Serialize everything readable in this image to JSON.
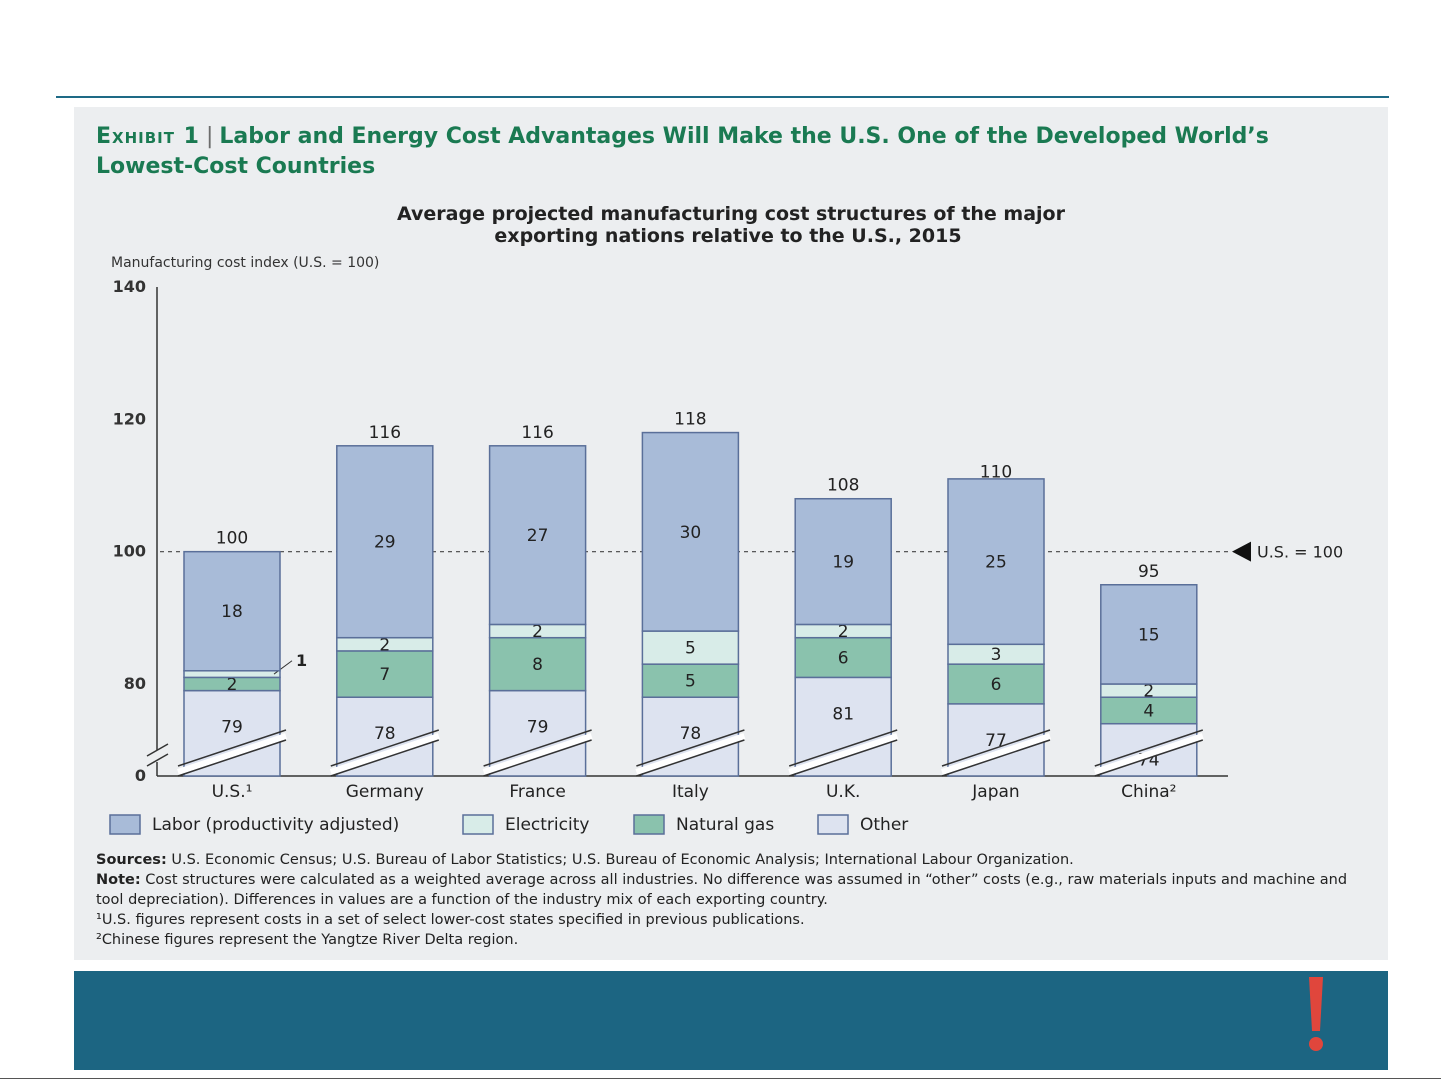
{
  "exhibit": {
    "label": "Exhibit 1",
    "separator": "|",
    "title": "Labor and Energy Cost Advantages Will Make the U.S. One of the Developed World’s Lowest-Cost Countries"
  },
  "chart_data": {
    "type": "bar",
    "stacked": true,
    "title": "Average projected manufacturing cost structures of the major exporting nations relative to the U.S., 2015",
    "title_lines": [
      "Average projected manufacturing cost structures of the major",
      "exporting nations relative to the U.S., 2015"
    ],
    "ylabel": "Manufacturing cost index (U.S. = 100)",
    "ylim": [
      0,
      140
    ],
    "axis_break": true,
    "y_ticks": [
      0,
      80,
      100,
      120,
      140
    ],
    "y_tick_labels": [
      "0",
      "80",
      "100",
      "120",
      "140"
    ],
    "categories": [
      "U.S.",
      "Germany",
      "France",
      "Italy",
      "U.K.",
      "Japan",
      "China"
    ],
    "category_labels": [
      "U.S.¹",
      "Germany",
      "France",
      "Italy",
      "U.K.",
      "Japan",
      "China²"
    ],
    "totals": [
      100,
      116,
      116,
      118,
      108,
      110,
      95
    ],
    "total_labels": [
      "100",
      "116",
      "116",
      "118",
      "108",
      "110",
      "95"
    ],
    "series": [
      {
        "name": "Other",
        "color": "#dde3f0",
        "values": [
          79,
          78,
          79,
          78,
          81,
          77,
          74
        ]
      },
      {
        "name": "Natural gas",
        "color": "#8ac2ad",
        "values": [
          2,
          7,
          8,
          5,
          6,
          6,
          4
        ]
      },
      {
        "name": "Electricity",
        "color": "#d8ece8",
        "values": [
          1,
          2,
          2,
          5,
          2,
          3,
          2
        ]
      },
      {
        "name": "Labor (productivity adjusted)",
        "color": "#a8bbd8",
        "values": [
          18,
          29,
          27,
          30,
          19,
          25,
          15
        ]
      }
    ],
    "segment_labels": [
      [
        "79",
        "2",
        "1",
        "18"
      ],
      [
        "78",
        "7",
        "2",
        "29"
      ],
      [
        "79",
        "8",
        "2",
        "27"
      ],
      [
        "78",
        "5",
        "5",
        "30"
      ],
      [
        "81",
        "6",
        "2",
        "19"
      ],
      [
        "77",
        "6",
        "3",
        "25"
      ],
      [
        "74",
        "4",
        "2",
        "15"
      ]
    ],
    "reference_line": {
      "value": 100,
      "label": "U.S. = 100"
    },
    "legend": {
      "position": "bottom-left",
      "items": [
        {
          "label": "Labor (productivity adjusted)",
          "color": "#a8bbd8"
        },
        {
          "label": "Electricity",
          "color": "#d8ece8"
        },
        {
          "label": "Natural gas",
          "color": "#8ac2ad"
        },
        {
          "label": "Other",
          "color": "#dde3f0"
        }
      ]
    },
    "grid": false
  },
  "notes": {
    "sources_label": "Sources:",
    "sources_text": "U.S. Economic Census; U.S. Bureau of Labor Statistics; U.S. Bureau of Economic Analysis; International Labour Organization.",
    "note_label": "Note:",
    "note_text": "Cost structures were calculated as a weighted average across all industries. No difference was assumed in “other” costs (e.g., raw materials inputs and machine and tool depreciation). Differences in values are a function of the industry mix of each exporting country.",
    "footnote_1": "¹U.S. figures represent costs in a set of select lower-cost states specified in previous publications.",
    "footnote_2": "²Chinese figures represent the Yangtze River Delta region."
  },
  "colors": {
    "title_green": "#1a7a52",
    "footer_blue": "#1c6582",
    "alert_red": "#e0463c"
  },
  "icons": {
    "alert": "exclamation-icon"
  }
}
